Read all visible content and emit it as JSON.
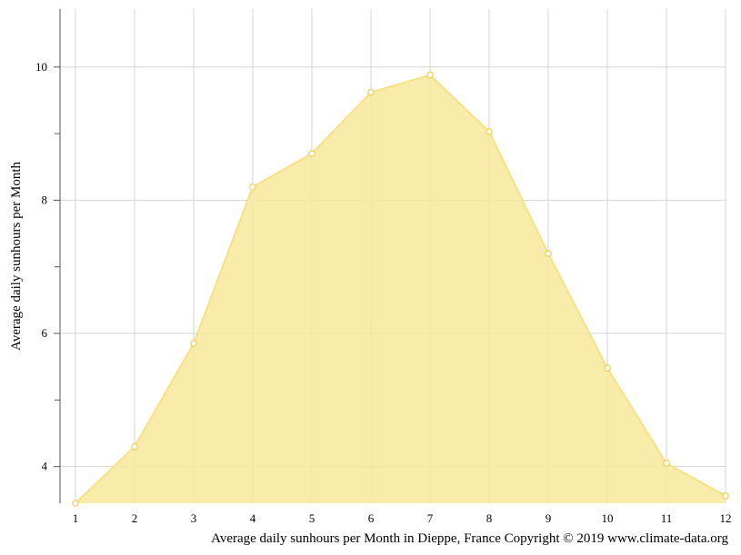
{
  "chart_data": {
    "type": "area",
    "x": [
      1,
      2,
      3,
      4,
      5,
      6,
      7,
      8,
      9,
      10,
      11,
      12
    ],
    "series": [
      {
        "values": [
          3.45,
          4.3,
          5.85,
          8.2,
          8.7,
          9.62,
          9.88,
          9.03,
          7.2,
          5.48,
          4.05,
          3.56
        ]
      }
    ],
    "x_tick_labels": [
      "1",
      "2",
      "3",
      "4",
      "5",
      "6",
      "7",
      "8",
      "9",
      "10",
      "11",
      "12"
    ],
    "y_tick_labels": [
      "4",
      "6",
      "8",
      "10"
    ],
    "y_ticks": [
      4,
      6,
      8,
      10
    ],
    "xlim": [
      1,
      12
    ],
    "ylim": [
      3.45,
      10.87
    ],
    "ylabel": "Average daily sunhours per Month",
    "xlabel": "Average daily sunhours per Month in Dieppe, France Copyright © 2019 www.climate-data.org",
    "grid": true,
    "colors": {
      "fill": "#f8e79a",
      "line": "#f7e185",
      "marker_fill": "#ffffff",
      "marker_stroke": "#efcf4d",
      "grid": "#d6d6d6",
      "axis": "#555555"
    }
  }
}
